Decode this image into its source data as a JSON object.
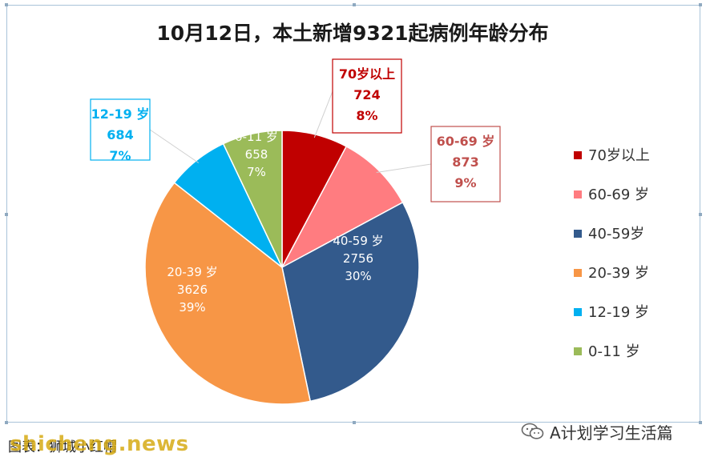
{
  "chart_data": {
    "type": "pie",
    "title": "10月12日，本土新增9321起病例年龄分布",
    "slices": [
      {
        "label": "70岁以上",
        "legend": "70岁以上",
        "value": 724,
        "percent": "8%",
        "color": "#c00000",
        "label_color": "#c00000"
      },
      {
        "label": "60-69 岁",
        "legend": "60-69 岁",
        "value": 873,
        "percent": "9%",
        "color": "#ff7c80",
        "label_color": "#c0504d"
      },
      {
        "label": "40-59 岁",
        "legend": "40-59岁",
        "value": 2756,
        "percent": "30%",
        "color": "#335a8c",
        "label_color": "#ffffff"
      },
      {
        "label": "20-39 岁",
        "legend": "20-39 岁",
        "value": 3626,
        "percent": "39%",
        "color": "#f79646",
        "label_color": "#ffffff"
      },
      {
        "label": "12-19 岁",
        "legend": "12-19 岁",
        "value": 684,
        "percent": "7%",
        "color": "#00b0f0",
        "label_color": "#00b0f0"
      },
      {
        "label": "0-11 岁",
        "legend": "0-11 岁",
        "value": 658,
        "percent": "7%",
        "color": "#9bbb59",
        "label_color": "#ffffff"
      }
    ],
    "legend_position": "right"
  },
  "footer": {
    "source": "图表：狮城小红帽",
    "watermark": "shicheng.news",
    "account": "A计划学习生活篇"
  }
}
